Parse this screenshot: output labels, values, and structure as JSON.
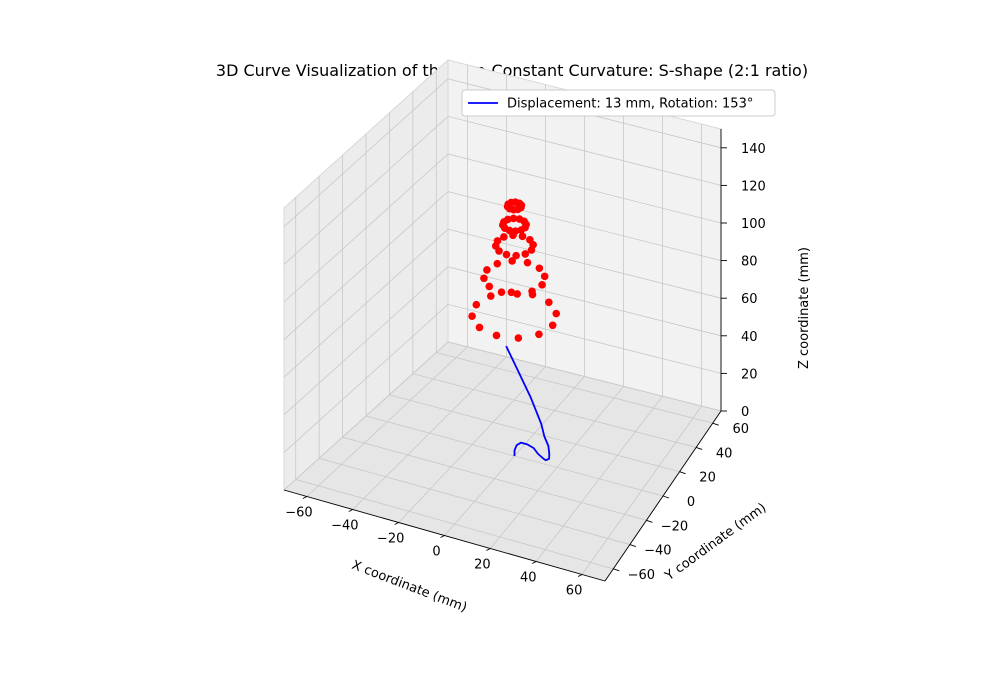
{
  "chart_data": {
    "type": "3d-line-scatter",
    "title": "3D Curve Visualization of the Non-Constant Curvature: S-shape (2:1 ratio)",
    "xlabel": "X coordinate (mm)",
    "ylabel": "Y coordinate (mm)",
    "zlabel": "Z coordinate (mm)",
    "xlim": [
      -70,
      70
    ],
    "ylim": [
      -70,
      70
    ],
    "zlim": [
      0,
      150
    ],
    "xticks": [
      -60,
      -40,
      -20,
      0,
      20,
      40,
      60
    ],
    "yticks": [
      -60,
      -40,
      -20,
      0,
      20,
      40,
      60
    ],
    "zticks": [
      0,
      20,
      40,
      60,
      80,
      100,
      120,
      140
    ],
    "grid": true,
    "legend_position": "upper-right",
    "legend": [
      "Displacement: 13 mm, Rotation: 153°"
    ],
    "series": [
      {
        "name": "Displacement: 13 mm, Rotation: 153°",
        "kind": "line",
        "color": "#0000ff",
        "points": [
          [
            0,
            0,
            0
          ],
          [
            0,
            0,
            3
          ],
          [
            1,
            0,
            6
          ],
          [
            3,
            0,
            8
          ],
          [
            6,
            0,
            8
          ],
          [
            9,
            0,
            7
          ],
          [
            12,
            -2,
            6
          ],
          [
            15,
            -3,
            5
          ],
          [
            17,
            -5,
            6
          ],
          [
            19,
            -6,
            8
          ],
          [
            20,
            -8,
            12
          ],
          [
            20,
            -9,
            17
          ],
          [
            19,
            -11,
            23
          ],
          [
            18,
            -12,
            30
          ],
          [
            16,
            -13,
            37
          ],
          [
            14,
            -14,
            44
          ],
          [
            11,
            -15,
            52
          ],
          [
            8,
            -16,
            60
          ],
          [
            4,
            -17,
            70
          ]
        ]
      },
      {
        "name": "",
        "kind": "scatter",
        "color": "#ff0000",
        "rings": [
          {
            "z": 75,
            "radius": 18,
            "count": 12
          },
          {
            "z": 95,
            "radius": 13,
            "count": 12
          },
          {
            "z": 112,
            "radius": 8,
            "count": 12
          },
          {
            "z": 123,
            "radius": 5,
            "count": 12
          },
          {
            "z": 133,
            "radius": 3,
            "count": 10
          }
        ]
      }
    ]
  }
}
